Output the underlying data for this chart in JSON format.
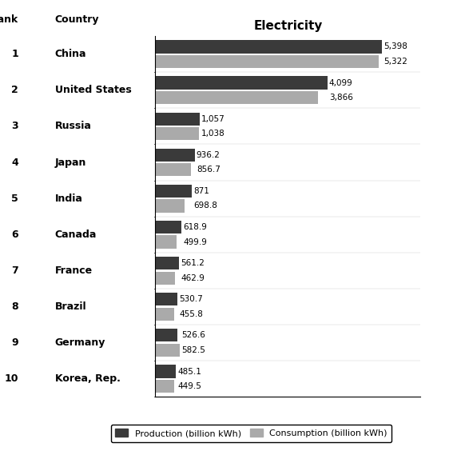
{
  "countries": [
    "China",
    "United States",
    "Russia",
    "Japan",
    "India",
    "Canada",
    "France",
    "Brazil",
    "Germany",
    "Korea, Rep."
  ],
  "ranks": [
    "1",
    "2",
    "3",
    "4",
    "5",
    "6",
    "7",
    "8",
    "9",
    "10"
  ],
  "production": [
    5398,
    4099,
    1057,
    936.2,
    871,
    618.9,
    561.2,
    530.7,
    526.6,
    485.1
  ],
  "consumption": [
    5322,
    3866,
    1038,
    856.7,
    698.8,
    499.9,
    462.9,
    455.8,
    582.5,
    449.5
  ],
  "production_labels": [
    "5,398",
    "4,099",
    "1,057",
    "936.2",
    "871",
    "618.9",
    "561.2",
    "530.7",
    "526.6",
    "485.1"
  ],
  "consumption_labels": [
    "5,322",
    "3,866",
    "1,038",
    "856.7",
    "698.8",
    "499.9",
    "462.9",
    "455.8",
    "582.5",
    "449.5"
  ],
  "production_color": "#3a3a3a",
  "consumption_color": "#aaaaaa",
  "title": "Electricity",
  "legend_production": "Production (billion kWh)",
  "legend_consumption": "Consumption (billion kWh)",
  "background_color": "#ffffff",
  "title_fontsize": 11,
  "label_fontsize": 7.5,
  "tick_fontsize": 9,
  "header_fontsize": 9
}
